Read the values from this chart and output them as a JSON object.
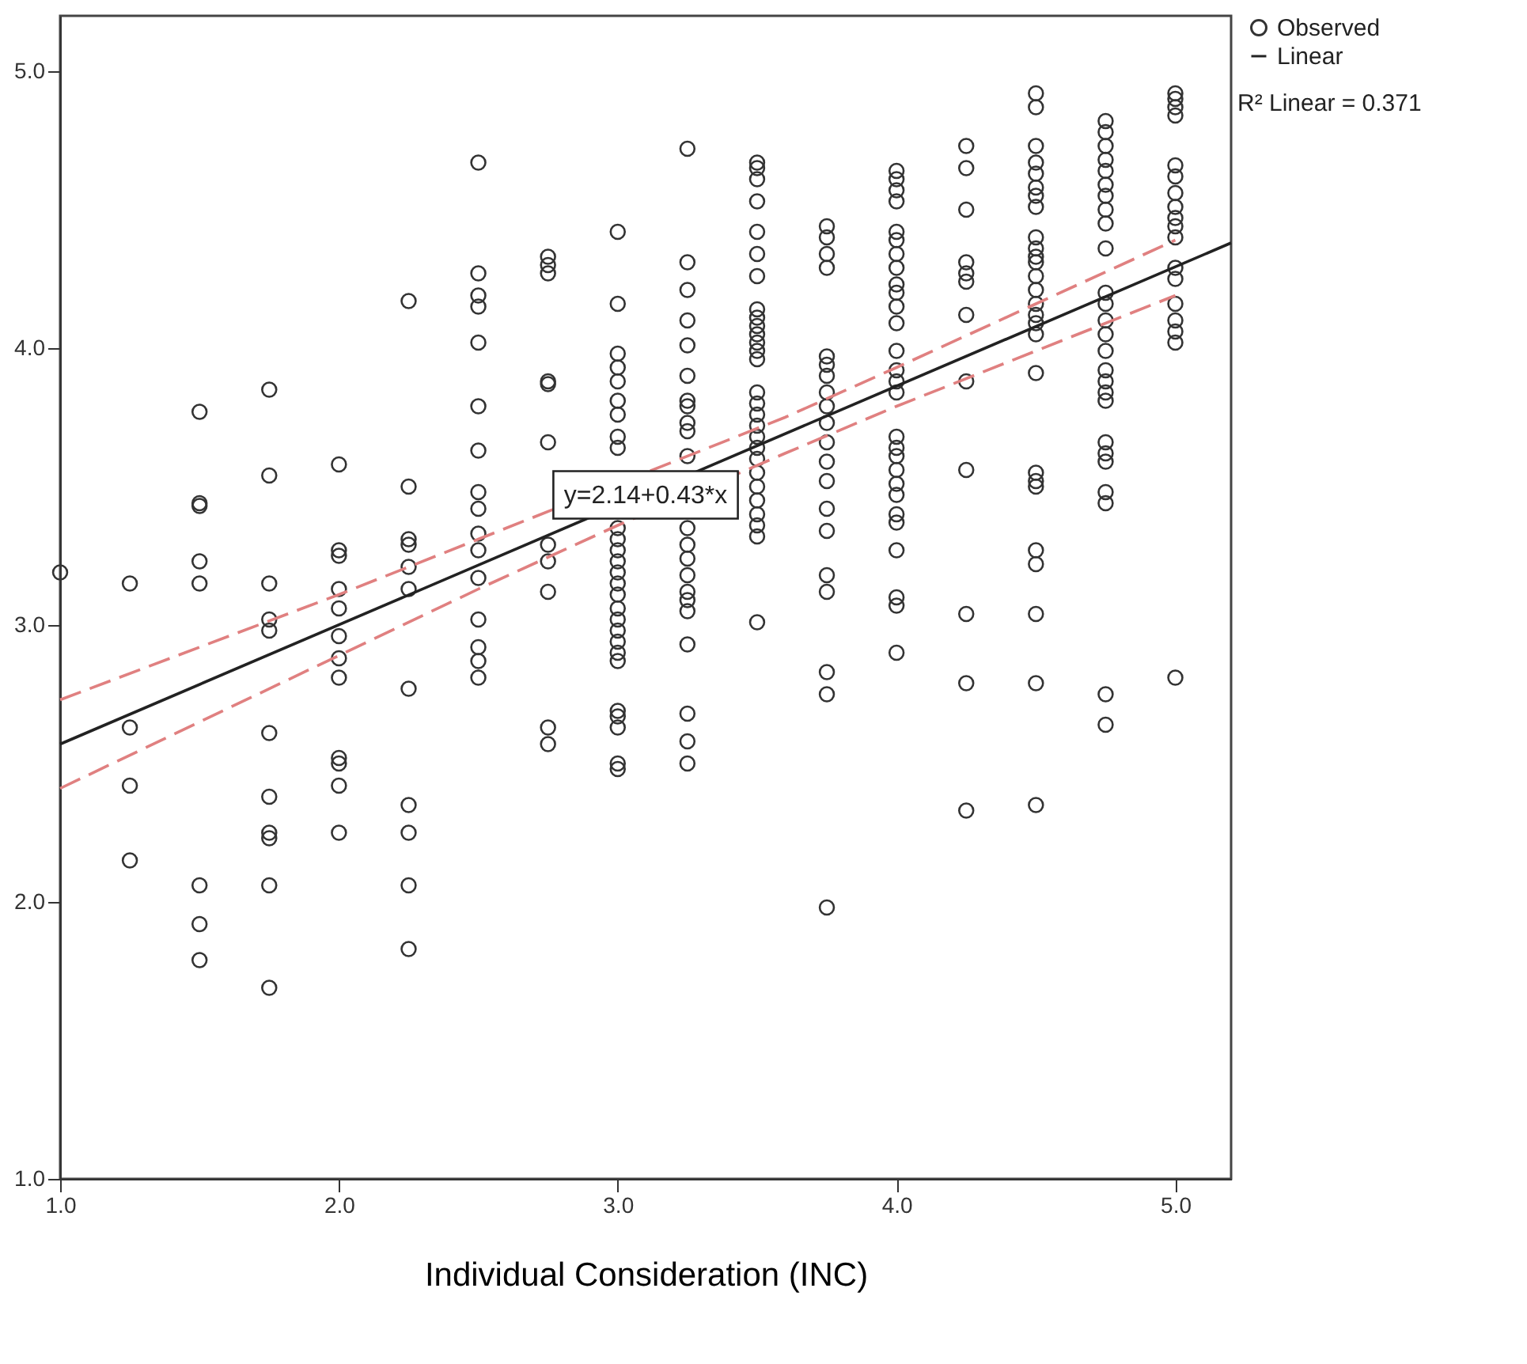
{
  "chart_data": {
    "type": "scatter",
    "xlabel": "Individual Consideration (INC)",
    "xlim": [
      1,
      5.2
    ],
    "ylim": [
      1,
      5.2
    ],
    "xticks": [
      {
        "value": 1,
        "label": "1.0"
      },
      {
        "value": 2,
        "label": "2.0"
      },
      {
        "value": 3,
        "label": "3.0"
      },
      {
        "value": 4,
        "label": "4.0"
      },
      {
        "value": 5,
        "label": "5.0"
      }
    ],
    "yticks": [
      {
        "value": 1,
        "label": "1.0"
      },
      {
        "value": 2,
        "label": "2.0"
      },
      {
        "value": 3,
        "label": "3.0"
      },
      {
        "value": 4,
        "label": "4.0"
      },
      {
        "value": 5,
        "label": "5.0"
      }
    ],
    "grid": false,
    "legend": "top right",
    "annotations": [
      {
        "text": "y=2.14+0.43*x",
        "x": 3.1,
        "y": 3.47
      },
      "R² Linear = 0.371"
    ],
    "series": [
      {
        "name": "Observed",
        "marker": "circle",
        "color": "#333333",
        "x": [
          1.0,
          1.25,
          1.25,
          1.25,
          1.25,
          1.5,
          1.5,
          1.5,
          1.5,
          1.5,
          1.5,
          1.5,
          1.5,
          1.75,
          1.75,
          1.75,
          1.75,
          1.75,
          1.75,
          1.75,
          1.75,
          1.75,
          1.75,
          1.75,
          2,
          2,
          2,
          2,
          2,
          2,
          2,
          2,
          2,
          2,
          2,
          2,
          2.25,
          2.25,
          2.25,
          2.25,
          2.25,
          2.25,
          2.25,
          2.25,
          2.25,
          2.25,
          2.25,
          2.5,
          2.5,
          2.5,
          2.5,
          2.5,
          2.5,
          2.5,
          2.5,
          2.5,
          2.5,
          2.5,
          2.5,
          2.5,
          2.5,
          2.5,
          2.5,
          2.75,
          2.75,
          2.75,
          2.75,
          2.75,
          2.75,
          2.75,
          2.75,
          2.75,
          2.75,
          2.75,
          3,
          3,
          3,
          3,
          3,
          3,
          3,
          3,
          3,
          3,
          3,
          3,
          3,
          3,
          3,
          3,
          3,
          3,
          3,
          3,
          3,
          3,
          3,
          3,
          3,
          3,
          3,
          3.25,
          3.25,
          3.25,
          3.25,
          3.25,
          3.25,
          3.25,
          3.25,
          3.25,
          3.25,
          3.25,
          3.25,
          3.25,
          3.25,
          3.25,
          3.25,
          3.25,
          3.25,
          3.25,
          3.25,
          3.25,
          3.25,
          3.5,
          3.5,
          3.5,
          3.5,
          3.5,
          3.5,
          3.5,
          3.5,
          3.5,
          3.5,
          3.5,
          3.5,
          3.5,
          3.5,
          3.5,
          3.5,
          3.5,
          3.5,
          3.5,
          3.5,
          3.5,
          3.5,
          3.5,
          3.5,
          3.5,
          3.5,
          3.5,
          3.5,
          3.75,
          3.75,
          3.75,
          3.75,
          3.75,
          3.75,
          3.75,
          3.75,
          3.75,
          3.75,
          3.75,
          3.75,
          3.75,
          3.75,
          3.75,
          3.75,
          3.75,
          3.75,
          3.75,
          3.75,
          4,
          4,
          4,
          4,
          4,
          4,
          4,
          4,
          4,
          4,
          4,
          4,
          4,
          4,
          4,
          4,
          4,
          4,
          4,
          4,
          4,
          4,
          4,
          4,
          4,
          4,
          4,
          4,
          4.25,
          4.25,
          4.25,
          4.25,
          4.25,
          4.25,
          4.25,
          4.25,
          4.25,
          4.25,
          4.25,
          4.25,
          4.5,
          4.5,
          4.5,
          4.5,
          4.5,
          4.5,
          4.5,
          4.5,
          4.5,
          4.5,
          4.5,
          4.5,
          4.5,
          4.5,
          4.5,
          4.5,
          4.5,
          4.5,
          4.5,
          4.5,
          4.5,
          4.5,
          4.5,
          4.5,
          4.5,
          4.5,
          4.5,
          4.75,
          4.75,
          4.75,
          4.75,
          4.75,
          4.75,
          4.75,
          4.75,
          4.75,
          4.75,
          4.75,
          4.75,
          4.75,
          4.75,
          4.75,
          4.75,
          4.75,
          4.75,
          4.75,
          4.75,
          4.75,
          4.75,
          4.75,
          4.75,
          4.75,
          4.75,
          5,
          5,
          5,
          5,
          5,
          5,
          5,
          5,
          5,
          5,
          5,
          5,
          5,
          5,
          5,
          5,
          5,
          5
        ],
        "values": [
          3.19,
          3.15,
          2.63,
          2.42,
          2.15,
          3.77,
          3.44,
          3.43,
          3.23,
          3.15,
          2.06,
          1.92,
          1.79,
          3.85,
          3.54,
          3.15,
          3.02,
          2.98,
          2.61,
          2.38,
          2.25,
          2.23,
          2.06,
          1.69,
          3.58,
          3.27,
          3.25,
          3.13,
          3.06,
          2.96,
          2.88,
          2.81,
          2.52,
          2.5,
          2.42,
          2.25,
          4.17,
          3.5,
          3.31,
          3.29,
          3.21,
          3.13,
          2.77,
          2.35,
          2.25,
          2.06,
          1.83,
          4.67,
          4.27,
          4.19,
          4.15,
          4.02,
          3.79,
          3.63,
          3.48,
          3.42,
          3.33,
          3.27,
          3.17,
          3.02,
          2.92,
          2.87,
          2.81,
          4.33,
          4.3,
          4.27,
          3.88,
          3.87,
          3.66,
          3.29,
          3.23,
          3.12,
          2.63,
          2.57,
          4.42,
          4.16,
          3.98,
          3.93,
          3.88,
          3.81,
          3.76,
          3.68,
          3.64,
          3.35,
          3.31,
          3.27,
          3.23,
          3.19,
          3.15,
          3.11,
          3.06,
          3.02,
          2.98,
          2.94,
          2.9,
          2.87,
          2.69,
          2.67,
          2.63,
          2.5,
          2.48,
          4.72,
          4.31,
          4.21,
          4.1,
          4.01,
          3.9,
          3.81,
          3.79,
          3.73,
          3.7,
          3.61,
          3.35,
          3.29,
          3.24,
          3.18,
          3.12,
          3.09,
          3.05,
          2.93,
          2.68,
          2.58,
          2.5,
          4.67,
          4.65,
          4.61,
          4.53,
          4.42,
          4.34,
          4.26,
          4.14,
          4.11,
          4.08,
          4.05,
          4.02,
          3.99,
          3.96,
          3.84,
          3.8,
          3.76,
          3.72,
          3.68,
          3.64,
          3.6,
          3.55,
          3.5,
          3.45,
          3.4,
          3.36,
          3.32,
          3.01,
          4.44,
          4.4,
          4.34,
          4.29,
          3.97,
          3.94,
          3.9,
          3.84,
          3.79,
          3.73,
          3.66,
          3.59,
          3.52,
          3.42,
          3.34,
          3.18,
          3.12,
          2.83,
          2.75,
          1.98,
          4.64,
          4.61,
          4.57,
          4.53,
          4.42,
          4.39,
          4.34,
          4.29,
          4.23,
          4.2,
          4.15,
          4.09,
          3.99,
          3.92,
          3.88,
          3.84,
          3.68,
          3.64,
          3.61,
          3.56,
          3.51,
          3.47,
          3.4,
          3.37,
          3.27,
          3.1,
          3.07,
          2.9,
          4.73,
          4.65,
          4.5,
          4.31,
          4.27,
          4.24,
          4.12,
          3.88,
          3.56,
          3.04,
          2.79,
          2.33,
          4.92,
          4.87,
          4.73,
          4.67,
          4.63,
          4.58,
          4.55,
          4.51,
          4.4,
          4.36,
          4.33,
          4.31,
          4.26,
          4.21,
          4.16,
          4.12,
          4.09,
          4.05,
          3.91,
          3.55,
          3.52,
          3.5,
          3.27,
          3.22,
          3.04,
          2.79,
          2.35,
          4.82,
          4.78,
          4.73,
          4.68,
          4.64,
          4.59,
          4.55,
          4.5,
          4.45,
          4.36,
          4.2,
          4.16,
          4.1,
          4.05,
          3.99,
          3.92,
          3.88,
          3.84,
          3.81,
          3.66,
          3.62,
          3.59,
          3.48,
          3.44,
          2.75,
          2.64,
          4.92,
          4.9,
          4.87,
          4.84,
          4.66,
          4.62,
          4.56,
          4.51,
          4.47,
          4.44,
          4.4,
          4.29,
          4.25,
          4.16,
          4.1,
          4.06,
          4.02,
          2.81
        ]
      },
      {
        "name": "Linear",
        "type": "line",
        "line_style": "solid",
        "color": "#222222",
        "x": [
          1,
          5.2
        ],
        "values": [
          2.57,
          4.38
        ]
      },
      {
        "type": "line",
        "line_style": "dashed",
        "color": "#e08080",
        "x": [
          1,
          1.5,
          2,
          2.5,
          3.6,
          4,
          4.5,
          5
        ],
        "values": [
          2.73,
          2.92,
          3.11,
          3.31,
          3.75,
          3.93,
          4.16,
          4.39
        ]
      },
      {
        "type": "line",
        "line_style": "dashed",
        "color": "#e08080",
        "x": [
          1,
          1.5,
          2,
          2.5,
          3,
          3.6,
          4,
          4.5,
          5
        ],
        "values": [
          2.41,
          2.65,
          2.89,
          3.13,
          3.36,
          3.62,
          3.79,
          3.99,
          4.19
        ]
      }
    ]
  }
}
